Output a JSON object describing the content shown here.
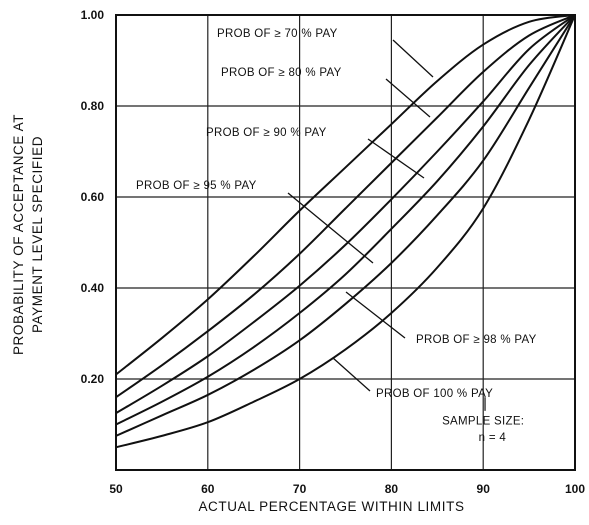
{
  "chart_data": {
    "type": "line",
    "title": "",
    "xlabel": "ACTUAL PERCENTAGE WITHIN LIMITS",
    "ylabel_lines": [
      "PROBABILITY OF ACCEPTANCE AT",
      "PAYMENT LEVEL SPECIFIED"
    ],
    "xlim": [
      50,
      100
    ],
    "ylim": [
      0,
      1
    ],
    "x_ticks": [
      50,
      60,
      70,
      80,
      90,
      100
    ],
    "x_tick_labels": [
      "50",
      "60",
      "70",
      "80",
      "90",
      "100"
    ],
    "y_ticks": [
      0.2,
      0.4,
      0.6,
      0.8,
      1.0
    ],
    "y_tick_labels": [
      "0.20",
      "0.40",
      "0.60",
      "0.80",
      "1.00"
    ],
    "grid": true,
    "x": [
      50,
      55,
      60,
      65,
      70,
      75,
      80,
      85,
      90,
      95,
      100
    ],
    "series": [
      {
        "name": "PROB OF ≥ 70 % PAY",
        "values": [
          0.21,
          0.29,
          0.375,
          0.47,
          0.57,
          0.665,
          0.76,
          0.855,
          0.935,
          0.985,
          1.0
        ]
      },
      {
        "name": "PROB OF ≥ 80 % PAY",
        "values": [
          0.16,
          0.23,
          0.305,
          0.385,
          0.475,
          0.575,
          0.675,
          0.775,
          0.875,
          0.955,
          1.0
        ]
      },
      {
        "name": "PROB OF ≥ 90 % PAY",
        "values": [
          0.125,
          0.185,
          0.25,
          0.325,
          0.405,
          0.495,
          0.595,
          0.7,
          0.81,
          0.925,
          1.0
        ]
      },
      {
        "name": "PROB OF ≥ 95 % PAY",
        "values": [
          0.1,
          0.15,
          0.205,
          0.27,
          0.345,
          0.43,
          0.53,
          0.635,
          0.755,
          0.89,
          1.0
        ]
      },
      {
        "name": "PROB OF ≥ 98 % PAY",
        "values": [
          0.075,
          0.12,
          0.165,
          0.22,
          0.285,
          0.365,
          0.455,
          0.56,
          0.68,
          0.84,
          1.0
        ]
      },
      {
        "name": "PROB OF 100 % PAY",
        "values": [
          0.05,
          0.075,
          0.105,
          0.15,
          0.2,
          0.265,
          0.345,
          0.445,
          0.575,
          0.77,
          1.0
        ]
      }
    ],
    "annotations": [
      {
        "text": "SAMPLE SIZE:",
        "x": 90,
        "y": 0.1
      },
      {
        "text": "n = 4",
        "x": 91,
        "y": 0.064
      }
    ]
  }
}
